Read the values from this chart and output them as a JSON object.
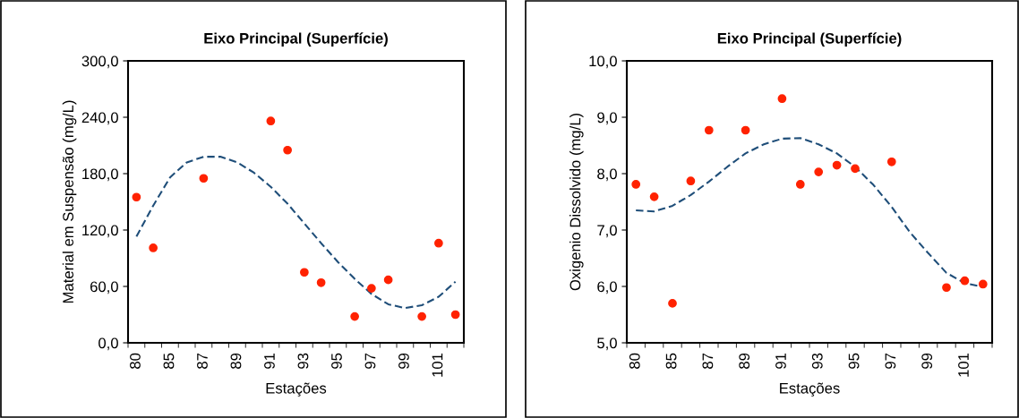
{
  "chart_data": [
    {
      "type": "scatter",
      "title": "Eixo Principal (Superfície)",
      "xlabel": "Estações",
      "ylabel": "Material em Suspensão (mg/L)",
      "categories": [
        "80",
        null,
        "85",
        null,
        "87",
        null,
        "89",
        null,
        "91",
        null,
        "93",
        null,
        "95",
        null,
        "97",
        null,
        "99",
        null,
        "101",
        null
      ],
      "series": [
        {
          "color": "#ff2200",
          "marker": "circle",
          "values": [
            155,
            101,
            null,
            null,
            175,
            null,
            null,
            null,
            236,
            205,
            75,
            64,
            null,
            28,
            58,
            67,
            null,
            28,
            106,
            30
          ]
        },
        {
          "type": "line",
          "color": "#1f4e79",
          "line_style": "dashed",
          "values": [
            113,
            146,
            176,
            192,
            198,
            198,
            192,
            181,
            166,
            148,
            127,
            106,
            86,
            68,
            52,
            41,
            37,
            40,
            49,
            65
          ]
        }
      ],
      "ylim": [
        0,
        300
      ],
      "yticks": [
        {
          "value": 0,
          "label": "0,0"
        },
        {
          "value": 60,
          "label": "60,0"
        },
        {
          "value": 120,
          "label": "120,0"
        },
        {
          "value": 180,
          "label": "180,0"
        },
        {
          "value": 240,
          "label": "240,0"
        },
        {
          "value": 300,
          "label": "300,0"
        }
      ],
      "grid": false,
      "legend": false
    },
    {
      "type": "scatter",
      "title": "Eixo Principal (Superfície)",
      "xlabel": "Estações",
      "ylabel": "Oxigenio Dissolvido (mg/L)",
      "categories": [
        "80",
        null,
        "85",
        null,
        "87",
        null,
        "89",
        null,
        "91",
        null,
        "93",
        null,
        "95",
        null,
        "97",
        null,
        "99",
        null,
        "101",
        null
      ],
      "series": [
        {
          "color": "#ff2200",
          "marker": "circle",
          "values": [
            7.81,
            7.59,
            5.7,
            7.87,
            8.77,
            null,
            8.77,
            null,
            9.33,
            7.81,
            8.03,
            8.15,
            8.09,
            null,
            8.21,
            null,
            null,
            5.98,
            6.1,
            6.04
          ]
        },
        {
          "type": "line",
          "color": "#1f4e79",
          "line_style": "dashed",
          "values": [
            7.35,
            7.33,
            7.43,
            7.62,
            7.86,
            8.12,
            8.36,
            8.52,
            8.62,
            8.63,
            8.52,
            8.36,
            8.12,
            7.8,
            7.41,
            6.96,
            6.59,
            6.24,
            6.06,
            5.99
          ]
        }
      ],
      "ylim": [
        5,
        10
      ],
      "yticks": [
        {
          "value": 5,
          "label": "5,0"
        },
        {
          "value": 6,
          "label": "6,0"
        },
        {
          "value": 7,
          "label": "7,0"
        },
        {
          "value": 8,
          "label": "8,0"
        },
        {
          "value": 9,
          "label": "9,0"
        },
        {
          "value": 10,
          "label": "10,0"
        }
      ],
      "grid": false,
      "legend": false
    }
  ]
}
